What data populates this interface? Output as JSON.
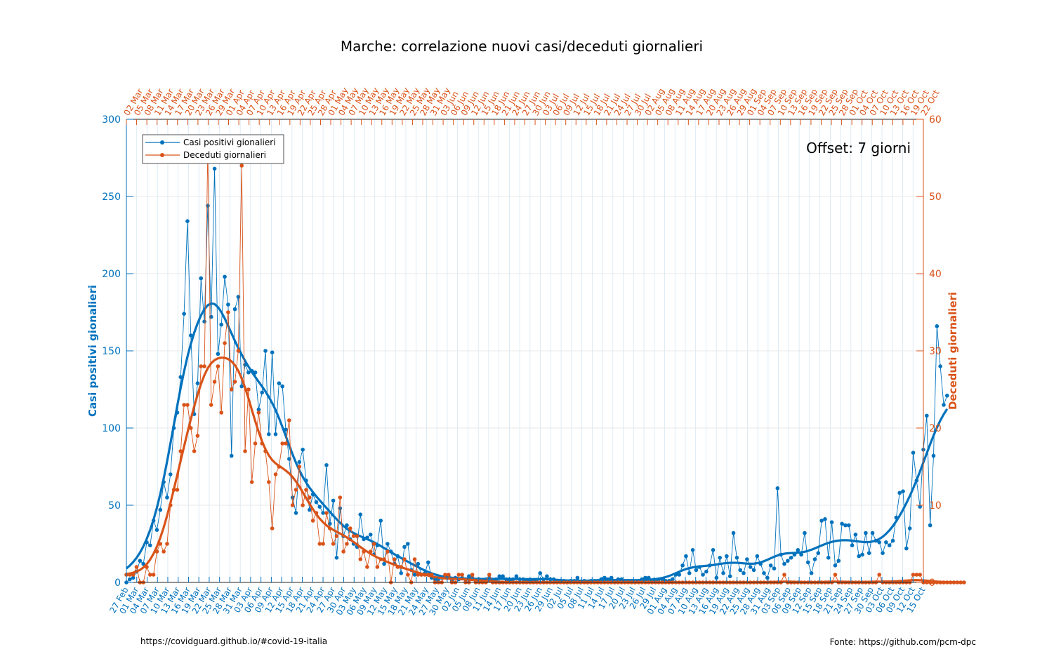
{
  "chart_data": {
    "type": "line",
    "title": "Marche: correlazione nuovi casi/deceduti giornalieri",
    "ylabel_left": "Casi positivi gionalieri",
    "ylabel_right": "Deceduti giornalieri",
    "ylim_left": [
      0,
      300
    ],
    "yticks_left": [
      "0",
      "50",
      "100",
      "150",
      "200",
      "250",
      "300"
    ],
    "ylim_right": [
      0,
      60
    ],
    "yticks_right": [
      "0",
      "10",
      "20",
      "30",
      "40",
      "50",
      "60"
    ],
    "offset_label": "Offset: 7 giorni",
    "grid": true,
    "legend_position": "top-left",
    "legend": [
      "Casi positivi gionalieri",
      "Deceduti giornalieri"
    ],
    "bottom_ticks": [
      "27 Feb",
      "01 Mar",
      "04 Mar",
      "07 Mar",
      "10 Mar",
      "13 Mar",
      "16 Mar",
      "19 Mar",
      "22 Mar",
      "25 Mar",
      "28 Mar",
      "31 Mar",
      "03 Apr",
      "06 Apr",
      "09 Apr",
      "12 Apr",
      "15 Apr",
      "18 Apr",
      "21 Apr",
      "24 Apr",
      "27 Apr",
      "30 Apr",
      "03 May",
      "06 May",
      "09 May",
      "12 May",
      "15 May",
      "18 May",
      "21 May",
      "24 May",
      "27 May",
      "30 May",
      "02 Jun",
      "05 Jun",
      "08 Jun",
      "11 Jun",
      "14 Jun",
      "17 Jun",
      "20 Jun",
      "23 Jun",
      "26 Jun",
      "29 Jun",
      "02 Jul",
      "05 Jul",
      "08 Jul",
      "11 Jul",
      "14 Jul",
      "17 Jul",
      "20 Jul",
      "23 Jul",
      "26 Jul",
      "29 Jul",
      "01 Aug",
      "04 Aug",
      "07 Aug",
      "10 Aug",
      "13 Aug",
      "16 Aug",
      "19 Aug",
      "22 Aug",
      "25 Aug",
      "28 Aug",
      "31 Aug",
      "03 Sep",
      "06 Sep",
      "09 Sep",
      "12 Sep",
      "15 Sep",
      "18 Sep",
      "21 Sep",
      "24 Sep",
      "27 Sep",
      "30 Sep",
      "03 Oct",
      "06 Oct",
      "09 Oct",
      "12 Oct",
      "15 Oct"
    ],
    "top_ticks": [
      "02 Mar",
      "05 Mar",
      "08 Mar",
      "11 Mar",
      "14 Mar",
      "17 Mar",
      "20 Mar",
      "23 Mar",
      "26 Mar",
      "29 Mar",
      "01 Apr",
      "04 Apr",
      "07 Apr",
      "10 Apr",
      "13 Apr",
      "16 Apr",
      "19 Apr",
      "22 Apr",
      "25 Apr",
      "28 Apr",
      "01 May",
      "04 May",
      "07 May",
      "10 May",
      "13 May",
      "16 May",
      "19 May",
      "22 May",
      "25 May",
      "28 May",
      "31 May",
      "03 Jun",
      "06 Jun",
      "09 Jun",
      "12 Jun",
      "15 Jun",
      "18 Jun",
      "21 Jun",
      "24 Jun",
      "27 Jun",
      "30 Jun",
      "03 Jul",
      "06 Jul",
      "09 Jul",
      "12 Jul",
      "15 Jul",
      "18 Jul",
      "21 Jul",
      "24 Jul",
      "27 Jul",
      "30 Jul",
      "02 Aug",
      "05 Aug",
      "08 Aug",
      "11 Aug",
      "14 Aug",
      "17 Aug",
      "20 Aug",
      "23 Aug",
      "26 Aug",
      "29 Aug",
      "01 Sep",
      "04 Sep",
      "07 Sep",
      "10 Sep",
      "13 Sep",
      "16 Sep",
      "19 Sep",
      "22 Sep",
      "25 Sep",
      "28 Sep",
      "01 Oct",
      "04 Oct",
      "07 Oct",
      "10 Oct",
      "13 Oct",
      "16 Oct",
      "19 Oct",
      "22 Oct"
    ],
    "days": 236,
    "series": [
      {
        "name": "Casi positivi gionalieri",
        "axis": "left",
        "color": "#0072BD",
        "values": [
          0,
          2,
          3,
          7,
          14,
          12,
          26,
          24,
          40,
          34,
          47,
          65,
          55,
          70,
          100,
          110,
          133,
          174,
          234,
          160,
          109,
          129,
          197,
          169,
          244,
          172,
          268,
          148,
          167,
          198,
          180,
          82,
          177,
          185,
          127,
          141,
          136,
          137,
          136,
          112,
          123,
          150,
          96,
          149,
          96,
          129,
          127,
          99,
          80,
          55,
          45,
          78,
          86,
          66,
          47,
          57,
          52,
          49,
          45,
          76,
          38,
          53,
          16,
          48,
          30,
          37,
          28,
          25,
          23,
          44,
          28,
          29,
          31,
          18,
          24,
          40,
          12,
          25,
          20,
          12,
          17,
          6,
          23,
          25,
          8,
          5,
          12,
          5,
          6,
          13,
          3,
          2,
          2,
          3,
          4,
          4,
          1,
          3,
          2,
          3,
          2,
          4,
          3,
          1,
          2,
          1,
          2,
          3,
          1,
          2,
          4,
          4,
          2,
          1,
          2,
          4,
          2,
          2,
          1,
          1,
          1,
          1,
          6,
          2,
          4,
          2,
          2,
          1,
          1,
          1,
          0,
          1,
          1,
          3,
          0,
          1,
          0,
          1,
          1,
          1,
          2,
          3,
          2,
          3,
          0,
          2,
          2,
          1,
          1,
          1,
          0,
          1,
          2,
          3,
          3,
          1,
          1,
          2,
          2,
          1,
          1,
          2,
          5,
          5,
          11,
          17,
          6,
          21,
          8,
          10,
          5,
          7,
          11,
          21,
          3,
          16,
          6,
          17,
          4,
          32,
          16,
          8,
          6,
          15,
          10,
          8,
          17,
          12,
          6,
          3,
          11,
          9,
          61,
          18,
          12,
          14,
          16,
          18,
          21,
          18,
          32,
          13,
          6,
          15,
          19,
          40,
          41,
          16,
          39,
          11,
          14,
          38,
          37,
          37,
          24,
          31,
          17,
          18,
          32,
          19,
          32,
          27,
          26,
          19,
          26,
          24,
          27,
          42,
          58,
          59,
          22,
          35,
          84,
          66,
          49,
          86,
          108,
          37,
          82,
          166,
          140,
          115,
          121
        ]
      },
      {
        "name": "Deceduti giornalieri",
        "axis": "right",
        "color": "#D95319",
        "values": [
          1,
          1,
          1,
          2,
          0,
          0,
          2,
          1,
          1,
          4,
          5,
          4,
          5,
          10,
          12,
          12,
          17,
          23,
          23,
          20,
          17,
          19,
          28,
          28,
          56,
          23,
          26,
          28,
          22,
          31,
          35,
          25,
          26,
          30,
          54,
          17,
          25,
          13,
          18,
          22,
          18,
          17,
          13,
          7,
          14,
          15,
          18,
          18,
          21,
          10,
          12,
          15,
          10,
          12,
          11,
          8,
          9,
          5,
          5,
          9,
          7,
          5,
          6,
          11,
          4,
          5,
          7,
          6,
          6,
          3,
          4,
          2,
          4,
          5,
          2,
          3,
          3,
          4,
          0,
          3,
          2,
          2,
          3,
          1,
          0,
          3,
          1,
          1,
          1,
          1,
          1,
          0,
          0,
          0,
          1,
          1,
          0,
          0,
          1,
          1,
          0,
          0,
          1,
          0,
          0,
          0,
          0,
          1,
          0,
          0,
          0,
          0,
          0,
          0,
          0,
          0,
          0,
          0,
          0,
          0,
          0,
          0,
          0,
          0,
          0,
          0,
          0,
          0,
          0,
          0,
          0,
          0,
          0,
          0,
          0,
          0,
          0,
          0,
          0,
          0,
          0,
          0,
          0,
          0,
          0,
          0,
          0,
          0,
          0,
          0,
          0,
          0,
          0,
          0,
          0,
          0,
          0,
          0,
          0,
          0,
          0,
          0,
          0,
          0,
          0,
          0,
          0,
          0,
          0,
          0,
          0,
          0,
          0,
          0,
          0,
          0,
          0,
          0,
          0,
          0,
          0,
          0,
          0,
          0,
          0,
          0,
          0,
          0,
          0,
          0,
          0,
          0,
          0,
          0,
          1,
          0,
          0,
          0,
          0,
          0,
          0,
          0,
          0,
          0,
          0,
          0,
          0,
          0,
          0,
          1,
          0,
          0,
          0,
          0,
          0,
          0,
          0,
          0,
          0,
          0,
          0,
          0,
          1,
          0,
          0,
          0,
          0,
          0,
          0,
          0,
          0,
          0,
          1,
          1,
          1,
          0,
          0,
          0,
          0,
          0,
          0,
          0,
          0,
          0,
          0,
          0,
          0,
          0
        ]
      }
    ]
  },
  "footer": {
    "left": "https://covidguard.github.io/#covid-19-italia",
    "right": "Fonte: https://github.com/pcm-dpc"
  }
}
